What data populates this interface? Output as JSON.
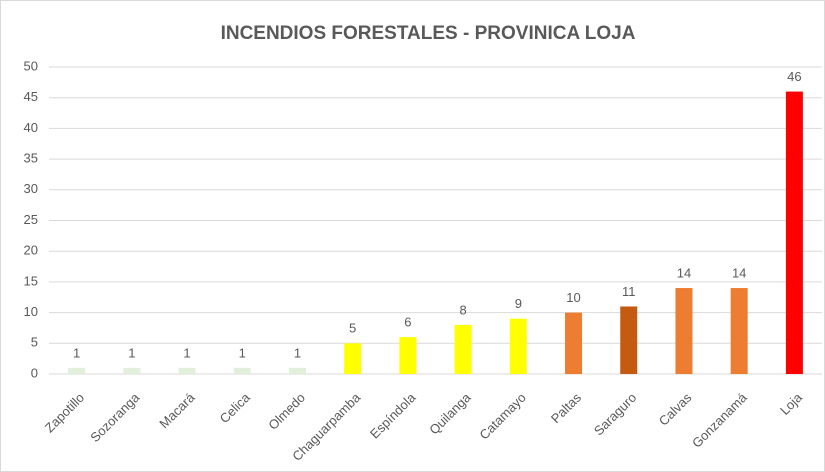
{
  "chart_data": {
    "type": "bar",
    "title": "INCENDIOS FORESTALES  - PROVINICA LOJA",
    "categories": [
      "Zapotillo",
      "Sozoranga",
      "Macará",
      "Celica",
      "Olmedo",
      "Chaguarpamba",
      "Espíndola",
      "Quilanga",
      "Catamayo",
      "Paltas",
      "Saraguro",
      "Calvas",
      "Gonzanamá",
      "Loja"
    ],
    "values": [
      1,
      1,
      1,
      1,
      1,
      5,
      6,
      8,
      9,
      10,
      11,
      14,
      14,
      46
    ],
    "colors": [
      "#e2efda",
      "#e2efda",
      "#e2efda",
      "#e2efda",
      "#e2efda",
      "#ffff00",
      "#ffff00",
      "#ffff00",
      "#ffff00",
      "#ed7d31",
      "#c55a11",
      "#ed7d31",
      "#ed7d31",
      "#ff0000"
    ],
    "ylim": [
      0,
      50
    ],
    "yticks": [
      0,
      5,
      10,
      15,
      20,
      25,
      30,
      35,
      40,
      45,
      50
    ],
    "grid": true
  }
}
